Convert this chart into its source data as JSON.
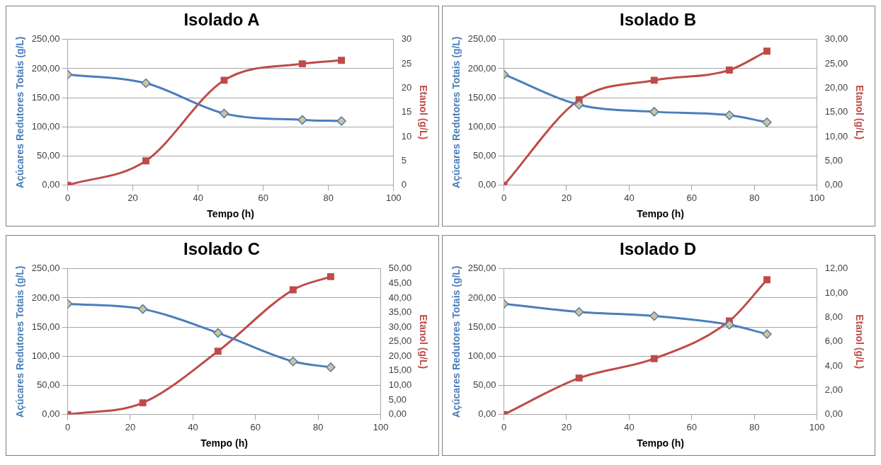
{
  "chart_data": [
    {
      "type": "line",
      "title": "Isolado A",
      "xlabel": "Tempo (h)",
      "ylabel": "Açúcares Redutores Totais (g/L)",
      "y2label": "Etanol (g/L)",
      "x": [
        0,
        24,
        48,
        72,
        84
      ],
      "xlim": [
        0,
        100
      ],
      "xticks": [
        0,
        20,
        40,
        60,
        80,
        100
      ],
      "ylim": [
        0,
        250
      ],
      "yticks": [
        {
          "value": 0,
          "label": "0,00"
        },
        {
          "value": 50,
          "label": "50,00"
        },
        {
          "value": 100,
          "label": "100,00"
        },
        {
          "value": 150,
          "label": "150,00"
        },
        {
          "value": 200,
          "label": "200,00"
        },
        {
          "value": 250,
          "label": "250,00"
        }
      ],
      "y2lim": [
        0,
        30
      ],
      "y2ticks": [
        0,
        5,
        10,
        15,
        20,
        25,
        30
      ],
      "grid": "y",
      "legend": false,
      "series": [
        {
          "color": "#4a7ebb",
          "marker": "diamond",
          "values": [
            190,
            175,
            123,
            112,
            110
          ]
        },
        {
          "color": "#be4b48",
          "marker": "square",
          "axis": "y2",
          "values": [
            0,
            5,
            21.6,
            25,
            25.7
          ]
        }
      ]
    },
    {
      "type": "line",
      "title": "Isolado B",
      "xlabel": "Tempo (h)",
      "ylabel": "Açúcares Redutores Totais (g/L)",
      "y2label": "Etanol (g/L)",
      "x": [
        0,
        24,
        48,
        72,
        84
      ],
      "xlim": [
        0,
        100
      ],
      "xticks": [
        0,
        20,
        40,
        60,
        80,
        100
      ],
      "ylim": [
        0,
        250
      ],
      "yticks": [
        {
          "value": 0,
          "label": "0,00"
        },
        {
          "value": 50,
          "label": "50,00"
        },
        {
          "value": 100,
          "label": "100,00"
        },
        {
          "value": 150,
          "label": "150,00"
        },
        {
          "value": 200,
          "label": "200,00"
        },
        {
          "value": 250,
          "label": "250,00"
        }
      ],
      "y2lim": [
        0,
        30
      ],
      "y2ticks": [
        {
          "value": 0,
          "label": "0,00"
        },
        {
          "value": 5,
          "label": "5,00"
        },
        {
          "value": 10,
          "label": "10,00"
        },
        {
          "value": 15,
          "label": "15,00"
        },
        {
          "value": 20,
          "label": "20,00"
        },
        {
          "value": 25,
          "label": "25,00"
        },
        {
          "value": 30,
          "label": "30,00"
        }
      ],
      "grid": "y",
      "legend": false,
      "series": [
        {
          "color": "#4a7ebb",
          "marker": "diamond",
          "values": [
            190,
            138,
            126,
            120,
            108
          ]
        },
        {
          "color": "#be4b48",
          "marker": "square",
          "axis": "y2",
          "values": [
            0,
            17.6,
            21.6,
            23.7,
            27.6
          ]
        }
      ]
    },
    {
      "type": "line",
      "title": "Isolado C",
      "xlabel": "Tempo (h)",
      "ylabel": "Açúcares Redutores Totais (g/L)",
      "y2label": "Etanol (g/L)",
      "x": [
        0,
        24,
        48,
        72,
        84
      ],
      "xlim": [
        0,
        100
      ],
      "xticks": [
        0,
        20,
        40,
        60,
        80,
        100
      ],
      "ylim": [
        0,
        250
      ],
      "yticks": [
        {
          "value": 0,
          "label": "0,00"
        },
        {
          "value": 50,
          "label": "50,00"
        },
        {
          "value": 100,
          "label": "100,00"
        },
        {
          "value": 150,
          "label": "150,00"
        },
        {
          "value": 200,
          "label": "200,00"
        },
        {
          "value": 250,
          "label": "250,00"
        }
      ],
      "y2lim": [
        0,
        50
      ],
      "y2ticks": [
        {
          "value": 0,
          "label": "0,00"
        },
        {
          "value": 5,
          "label": "5,00"
        },
        {
          "value": 10,
          "label": "10,00"
        },
        {
          "value": 15,
          "label": "15,00"
        },
        {
          "value": 20,
          "label": "20,00"
        },
        {
          "value": 25,
          "label": "25,00"
        },
        {
          "value": 30,
          "label": "30,00"
        },
        {
          "value": 35,
          "label": "35,00"
        },
        {
          "value": 40,
          "label": "40,00"
        },
        {
          "value": 45,
          "label": "45,00"
        },
        {
          "value": 50,
          "label": "50,00"
        }
      ],
      "grid": "y",
      "legend": false,
      "series": [
        {
          "color": "#4a7ebb",
          "marker": "diamond",
          "values": [
            190,
            181,
            140,
            91,
            81
          ]
        },
        {
          "color": "#be4b48",
          "marker": "square",
          "axis": "y2",
          "values": [
            0,
            4,
            21.7,
            42.8,
            47.3
          ]
        }
      ]
    },
    {
      "type": "line",
      "title": "Isolado D",
      "xlabel": "Tempo (h)",
      "ylabel": "Açúcares Redutores Totais (g/L)",
      "y2label": "Etanol (g/L)",
      "x": [
        0,
        24,
        48,
        72,
        84
      ],
      "xlim": [
        0,
        100
      ],
      "xticks": [
        0,
        20,
        40,
        60,
        80,
        100
      ],
      "ylim": [
        0,
        250
      ],
      "yticks": [
        {
          "value": 0,
          "label": "0,00"
        },
        {
          "value": 50,
          "label": "50,00"
        },
        {
          "value": 100,
          "label": "100,00"
        },
        {
          "value": 150,
          "label": "150,00"
        },
        {
          "value": 200,
          "label": "200,00"
        },
        {
          "value": 250,
          "label": "250,00"
        }
      ],
      "y2lim": [
        0,
        12
      ],
      "y2ticks": [
        {
          "value": 0,
          "label": "0,00"
        },
        {
          "value": 2,
          "label": "2,00"
        },
        {
          "value": 4,
          "label": "4,00"
        },
        {
          "value": 6,
          "label": "6,00"
        },
        {
          "value": 8,
          "label": "8,00"
        },
        {
          "value": 10,
          "label": "10,00"
        },
        {
          "value": 12,
          "label": "12,00"
        }
      ],
      "grid": "y",
      "legend": false,
      "series": [
        {
          "color": "#4a7ebb",
          "marker": "diamond",
          "values": [
            190,
            176,
            169,
            154,
            138
          ]
        },
        {
          "color": "#be4b48",
          "marker": "square",
          "axis": "y2",
          "values": [
            0,
            3,
            4.6,
            7.7,
            11.1
          ]
        }
      ]
    }
  ]
}
